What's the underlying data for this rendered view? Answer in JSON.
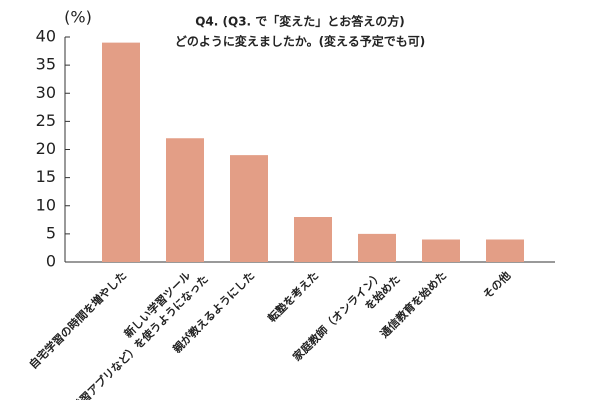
{
  "chart_data": {
    "type": "bar",
    "title": [
      "Q4. (Q3. で「変えた」とお答えの方)",
      "どのように変えましたか。(変える予定でも可)"
    ],
    "y_label": "(%)",
    "categories": [
      [
        "自宅学習の時間を増やした"
      ],
      [
        "新しい学習ツール",
        "（学習アプリなど）を使うようになった"
      ],
      [
        "親が教えるようにした"
      ],
      [
        "転塾を考えた"
      ],
      [
        "家庭教師（オンライン）",
        "を始めた"
      ],
      [
        "通信教育を始めた"
      ],
      [
        "その他"
      ]
    ],
    "values": [
      39,
      22,
      19,
      8,
      5,
      4,
      4
    ],
    "color": "#e39e86",
    "ylim": [
      0,
      40
    ],
    "yticks": [
      0,
      5,
      10,
      15,
      20,
      25,
      30,
      35,
      40
    ],
    "grid": false
  }
}
